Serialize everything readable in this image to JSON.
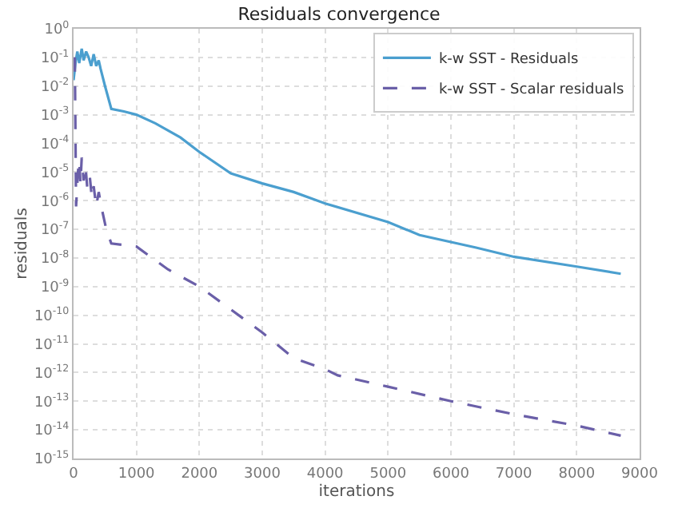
{
  "chart_data": {
    "type": "line",
    "title": "Residuals convergence",
    "xlabel": "iterations",
    "ylabel": "residuals",
    "log": "y",
    "grid": true,
    "legend": "top right",
    "xlim": [
      0,
      9000
    ],
    "ylim": [
      1e-15,
      1
    ],
    "xticks": [
      0,
      1000,
      2000,
      3000,
      4000,
      5000,
      6000,
      7000,
      8000,
      9000
    ],
    "yticks": [
      {
        "value": 1e-15,
        "label": "10$^{-15}$"
      },
      {
        "value": 1e-14,
        "label": "10$^{-14}$"
      },
      {
        "value": 1e-13,
        "label": "10$^{-13}$"
      },
      {
        "value": 1e-12,
        "label": "10$^{-12}$"
      },
      {
        "value": 1e-11,
        "label": "10$^{-11}$"
      },
      {
        "value": 1e-10,
        "label": "10$^{-10}$"
      },
      {
        "value": 1e-09,
        "label": "10$^{-9}$"
      },
      {
        "value": 1e-08,
        "label": "10$^{-8}$"
      },
      {
        "value": 1e-07,
        "label": "10$^{-7}$"
      },
      {
        "value": 1e-06,
        "label": "10$^{-6}$"
      },
      {
        "value": 1e-05,
        "label": "10$^{-5}$"
      },
      {
        "value": 0.0001,
        "label": "10$^{-4}$"
      },
      {
        "value": 0.001,
        "label": "10$^{-3}$"
      },
      {
        "value": 0.01,
        "label": "10$^{-2}$"
      },
      {
        "value": 0.1,
        "label": "10$^{-1}$"
      },
      {
        "value": 1,
        "label": "10$^{0}$"
      }
    ],
    "series": [
      {
        "name": "k-w SST - Residuals",
        "color": "#4b9fcf",
        "line_style": "solid",
        "x": [
          0,
          30,
          60,
          90,
          130,
          160,
          200,
          240,
          280,
          320,
          360,
          400,
          430,
          500,
          600,
          800,
          1000,
          1300,
          1700,
          2000,
          2500,
          3000,
          3500,
          4000,
          5000,
          5500,
          6400,
          7000,
          8000,
          8700
        ],
        "values": [
          0.016,
          0.063,
          0.16,
          0.063,
          0.2,
          0.079,
          0.16,
          0.1,
          0.05,
          0.13,
          0.05,
          0.079,
          0.04,
          0.01,
          0.0016,
          0.0013,
          0.001,
          0.0005,
          0.00016,
          5e-05,
          9e-06,
          4e-06,
          2e-06,
          8e-07,
          1.8e-07,
          6.3e-08,
          2.3e-08,
          1.1e-08,
          5e-09,
          2.8e-09
        ]
      },
      {
        "name": "k-w SST - Scalar residuals",
        "color": "#6a5fa8",
        "line_style": "dashed",
        "x": [
          20,
          40,
          70,
          90,
          110,
          130,
          160,
          190,
          220,
          260,
          290,
          320,
          360,
          400,
          440,
          520,
          600,
          1000,
          1500,
          2000,
          2500,
          3000,
          3500,
          4000,
          4200,
          5000,
          6000,
          7000,
          8000,
          8700
        ],
        "values": [
          0.1,
          6.3e-07,
          1e-05,
          2.5e-05,
          4e-06,
          3.2e-05,
          5e-06,
          1.6e-05,
          2.5e-06,
          6.3e-06,
          1.3e-06,
          3.2e-06,
          6.3e-07,
          2e-06,
          6.3e-07,
          1e-07,
          3.2e-08,
          2.5e-08,
          4e-09,
          1e-09,
          1.6e-10,
          2.5e-11,
          3.2e-12,
          1.3e-12,
          8e-13,
          3.2e-13,
          1e-13,
          3.5e-14,
          1.4e-14,
          6.3e-15
        ]
      }
    ]
  }
}
